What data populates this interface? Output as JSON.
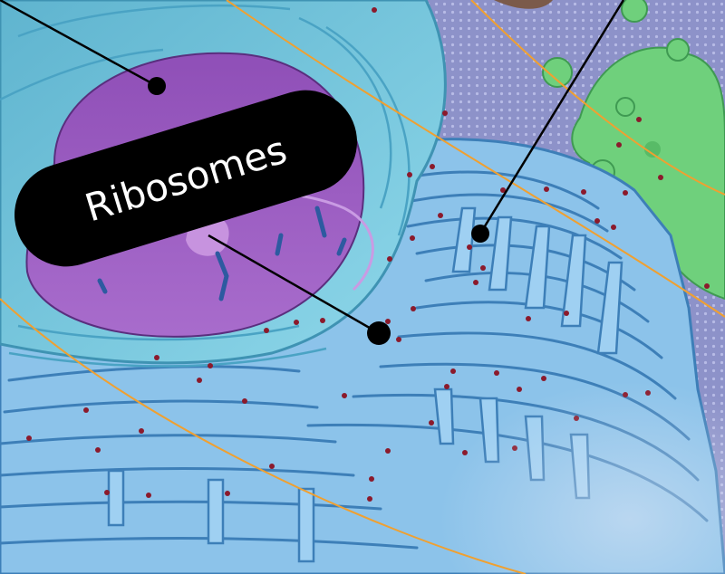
{
  "annotation": {
    "label": "Ribosomes"
  },
  "colors": {
    "membrane_bg": "#8d92c9",
    "er_blue": "#7cb9e8",
    "er_edge": "#3d7fb8",
    "nucleus_purple": "#9b5fc0",
    "nucleus_dark": "#6d3a93",
    "envelope_cyan": "#7fd0e3",
    "ribosome_red": "#8b1a2c",
    "golgi_green": "#6fd07c",
    "tether_orange": "#f0a030",
    "label_bg": "#000000",
    "label_text": "#ffffff"
  }
}
